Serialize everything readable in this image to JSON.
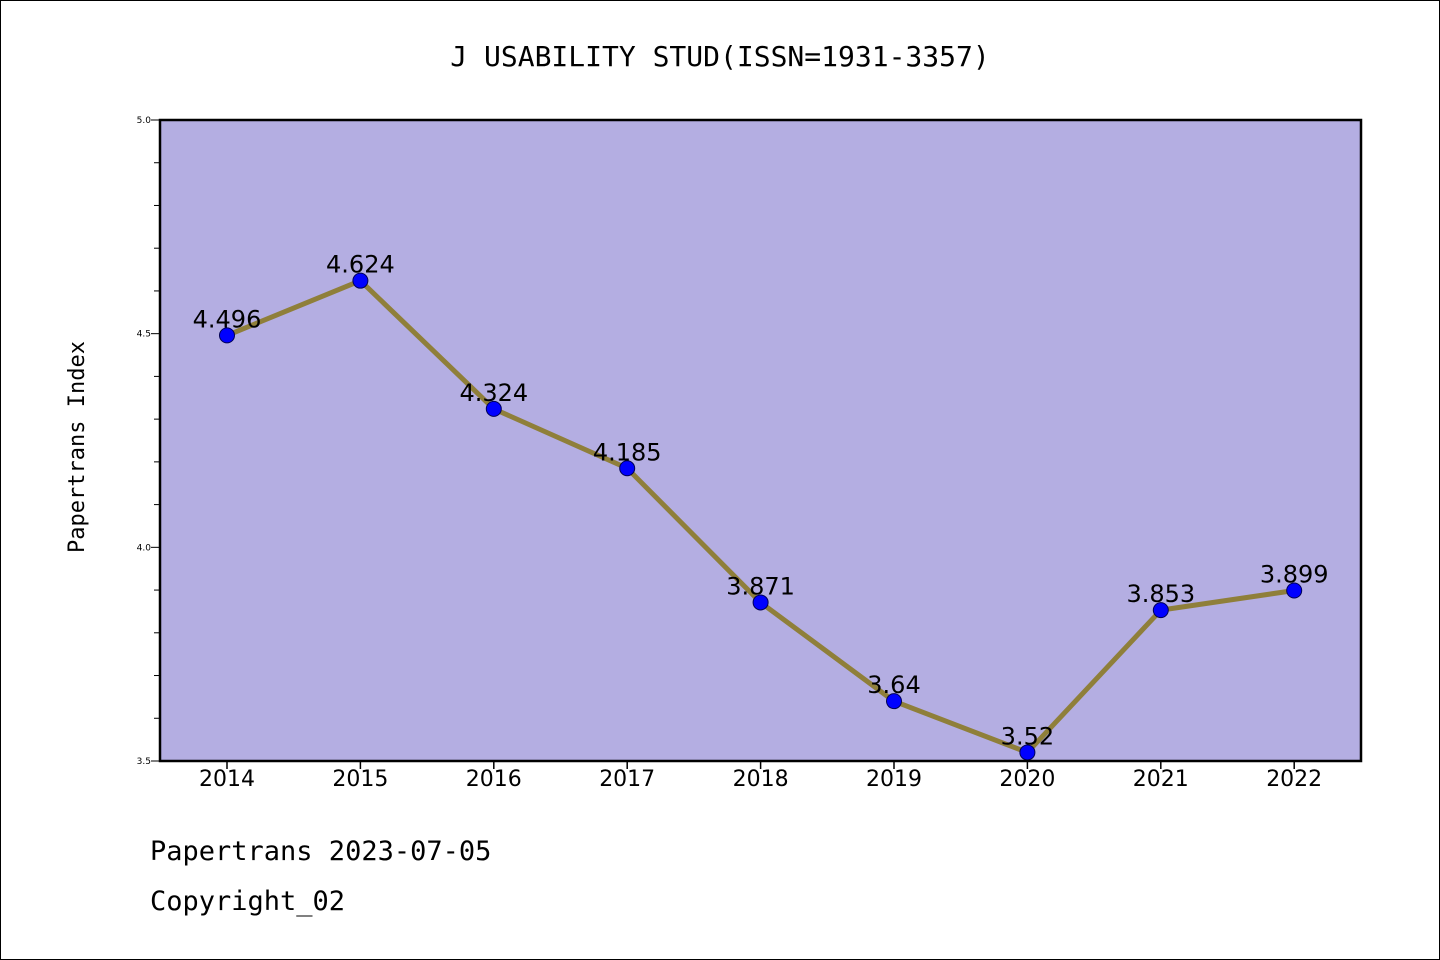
{
  "chart_data": {
    "type": "line",
    "title": "J USABILITY STUD(ISSN=1931-3357)",
    "xlabel": "",
    "ylabel": "Papertrans Index",
    "categories": [
      "2014",
      "2015",
      "2016",
      "2017",
      "2018",
      "2019",
      "2020",
      "2021",
      "2022"
    ],
    "series": [
      {
        "values": [
          4.496,
          4.624,
          4.324,
          4.185,
          3.871,
          3.64,
          3.52,
          3.853,
          3.899
        ]
      }
    ],
    "data_labels": [
      "4.496",
      "4.624",
      "4.324",
      "4.185",
      "3.871",
      "3.64",
      "3.52",
      "3.853",
      "3.899"
    ],
    "ylim": [
      3.5,
      5.0
    ],
    "yticks": [
      "3.5",
      "4.0",
      "4.5",
      "5.0"
    ],
    "grid": false,
    "colors": {
      "plot_background": "#b4aee2",
      "line": "#8f7f3a",
      "marker": "#0000ff"
    }
  },
  "footer": {
    "date_line": "Papertrans 2023-07-05",
    "copyright_line": "Copyright_02"
  }
}
